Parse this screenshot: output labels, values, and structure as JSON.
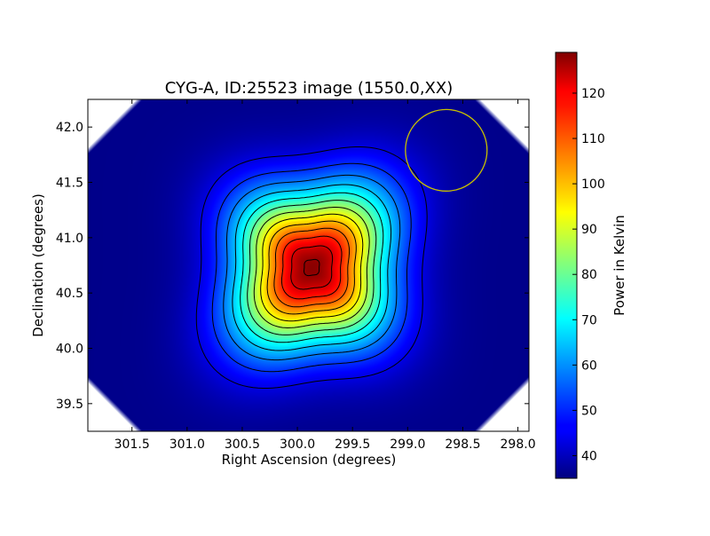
{
  "chart_data": {
    "type": "heatmap",
    "title": "CYG-A, ID:25523 image (1550.0,XX)",
    "xlabel": "Right Ascension (degrees)",
    "ylabel": "Declination (degrees)",
    "xlim": [
      301.9,
      297.9
    ],
    "ylim": [
      39.25,
      42.25
    ],
    "x_ticks": [
      "301.5",
      "301.0",
      "300.5",
      "300.0",
      "299.5",
      "299.0",
      "298.5",
      "298.0"
    ],
    "x_tick_values": [
      301.5,
      301.0,
      300.5,
      300.0,
      299.5,
      299.0,
      298.5,
      298.0
    ],
    "y_ticks": [
      "39.5",
      "40.0",
      "40.5",
      "41.0",
      "41.5",
      "42.0"
    ],
    "y_tick_values": [
      39.5,
      40.0,
      40.5,
      41.0,
      41.5,
      42.0
    ],
    "colormap": "jet",
    "colorbar": {
      "label": "Power in Kelvin",
      "min": 35,
      "max": 129,
      "ticks": [
        "40",
        "50",
        "60",
        "70",
        "80",
        "90",
        "100",
        "110",
        "120"
      ],
      "tick_values": [
        40,
        50,
        60,
        70,
        80,
        90,
        100,
        110,
        120
      ]
    },
    "source": {
      "ra": 299.87,
      "dec": 40.73,
      "peak_kelvin": 128,
      "background_kelvin": 36
    },
    "contour_levels_kelvin": [
      44,
      51,
      58,
      65,
      72,
      79,
      86,
      93,
      100,
      107,
      114,
      121,
      127
    ],
    "beam": {
      "ra": 298.65,
      "dec": 41.79,
      "radius_deg": 0.37,
      "color": "#c8c000"
    },
    "grid": false
  }
}
